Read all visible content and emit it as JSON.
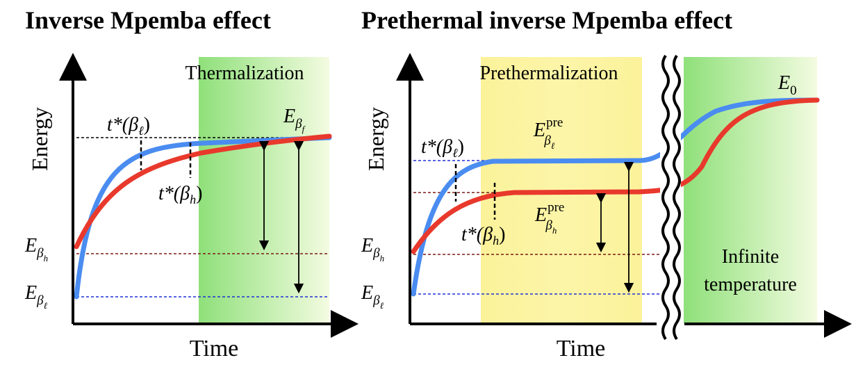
{
  "left": {
    "title": "Inverse Mpemba effect",
    "region_label": "Thermalization",
    "y_axis": "Energy",
    "x_axis": "Time",
    "t_ell": {
      "pre": "t*(β",
      "sub": "ℓ",
      "post": ")"
    },
    "t_h": {
      "pre": "t*(β",
      "sub": "h",
      "post": ")"
    },
    "e_final": {
      "base": "E",
      "sub": "β",
      "subsub": "f"
    },
    "e_h": {
      "base": "E",
      "sub": "β",
      "subsub": "h"
    },
    "e_ell": {
      "base": "E",
      "sub": "β",
      "subsub": "ℓ"
    }
  },
  "right": {
    "title": "Prethermal inverse Mpemba effect",
    "region_label": "Prethermalization",
    "infinite_label_1": "Infinite",
    "infinite_label_2": "temperature",
    "y_axis": "Energy",
    "x_axis": "Time",
    "t_ell": {
      "pre": "t*(β",
      "sub": "ℓ",
      "post": ")"
    },
    "t_h": {
      "pre": "t*(β",
      "sub": "h",
      "post": ")"
    },
    "e_pre_ell": {
      "base": "E",
      "sup": "pre",
      "sub": "β",
      "subsub": "ℓ"
    },
    "e_pre_h": {
      "base": "E",
      "sup": "pre",
      "sub": "β",
      "subsub": "h"
    },
    "e_zero": {
      "base": "E",
      "sub": "0"
    },
    "e_h": {
      "base": "E",
      "sub": "β",
      "subsub": "h"
    },
    "e_ell": {
      "base": "E",
      "sub": "β",
      "subsub": "ℓ"
    }
  },
  "colors": {
    "low_temp_curve": "#4a8cf0",
    "high_temp_curve": "#e8392c",
    "thermalization_band": "#8fe07a",
    "prethermalization_band": "#fbf29a",
    "blue_dashed": "#1f2fd6",
    "red_dashed": "#7a1a14"
  }
}
